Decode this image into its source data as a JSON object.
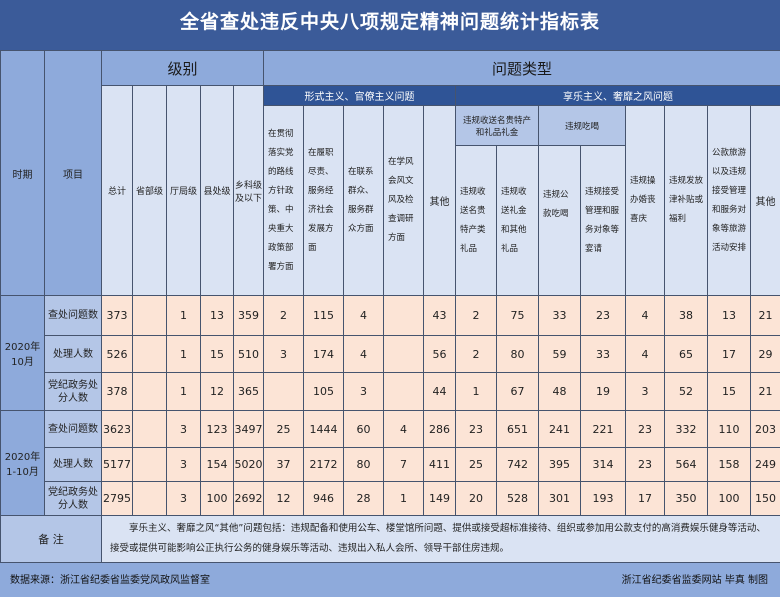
{
  "title": "全省查处违反中央八项规定精神问题统计指标表",
  "headers": {
    "period": "时期",
    "item": "项目",
    "level": "级别",
    "problem_type": "问题类型",
    "levels": [
      "总计",
      "省部级",
      "厅局级",
      "县处级",
      "乡科级及以下"
    ],
    "formalism": "形式主义、官僚主义问题",
    "formalism_cols": [
      "在贯彻落实党的路线方针政策、中央重大政策部署方面",
      "在履职尽责、服务经济社会发展方面",
      "在联系群众、服务群众方面",
      "在学风会风文风及检查调研方面",
      "其他"
    ],
    "hedonism": "享乐主义、奢靡之风问题",
    "gifts_group": "违规收送名贵特产和礼品礼金",
    "gifts_cols": [
      "违规收送名贵特产类礼品",
      "违规收送礼金和其他礼品"
    ],
    "dining_group": "违规吃喝",
    "dining_cols": [
      "违规公款吃喝",
      "违规接受管理和服务对象等宴请"
    ],
    "hedonism_cols": [
      "违规操办婚丧喜庆",
      "违规发放津补贴或福利",
      "公款旅游以及违规接受管理和服务对象等旅游活动安排",
      "其他"
    ]
  },
  "periods": [
    {
      "label": "2020年10月",
      "rows": [
        {
          "item": "查处问题数",
          "values": [
            "373",
            "",
            "1",
            "13",
            "359",
            "2",
            "115",
            "4",
            "",
            "43",
            "2",
            "75",
            "33",
            "23",
            "4",
            "38",
            "13",
            "21"
          ]
        },
        {
          "item": "处理人数",
          "values": [
            "526",
            "",
            "1",
            "15",
            "510",
            "3",
            "174",
            "4",
            "",
            "56",
            "2",
            "80",
            "59",
            "33",
            "4",
            "65",
            "17",
            "29"
          ]
        },
        {
          "item": "党纪政务处分人数",
          "values": [
            "378",
            "",
            "1",
            "12",
            "365",
            "",
            "105",
            "3",
            "",
            "44",
            "1",
            "67",
            "48",
            "19",
            "3",
            "52",
            "15",
            "21"
          ]
        }
      ]
    },
    {
      "label": "2020年1-10月",
      "rows": [
        {
          "item": "查处问题数",
          "values": [
            "3623",
            "",
            "3",
            "123",
            "3497",
            "25",
            "1444",
            "60",
            "4",
            "286",
            "23",
            "651",
            "241",
            "221",
            "23",
            "332",
            "110",
            "203"
          ]
        },
        {
          "item": "处理人数",
          "values": [
            "5177",
            "",
            "3",
            "154",
            "5020",
            "37",
            "2172",
            "80",
            "7",
            "411",
            "25",
            "742",
            "395",
            "314",
            "23",
            "564",
            "158",
            "249"
          ]
        },
        {
          "item": "党纪政务处分人数",
          "values": [
            "2795",
            "",
            "3",
            "100",
            "2692",
            "12",
            "946",
            "28",
            "1",
            "149",
            "20",
            "528",
            "301",
            "193",
            "17",
            "350",
            "100",
            "150"
          ]
        }
      ]
    }
  ],
  "note": {
    "label": "备 注",
    "text": "享乐主义、奢靡之风“其他”问题包括：违规配备和使用公车、楼堂馆所问题、提供或接受超标准接待、组织或参加用公款支付的高消费娱乐健身等活动、接受或提供可能影响公正执行公务的健身娱乐等活动、违规出入私人会所、领导干部住房违规。"
  },
  "footer": {
    "source": "数据来源：浙江省纪委省监委党风政风监督室",
    "credit": "浙江省纪委省监委网站 毕真 制图"
  }
}
